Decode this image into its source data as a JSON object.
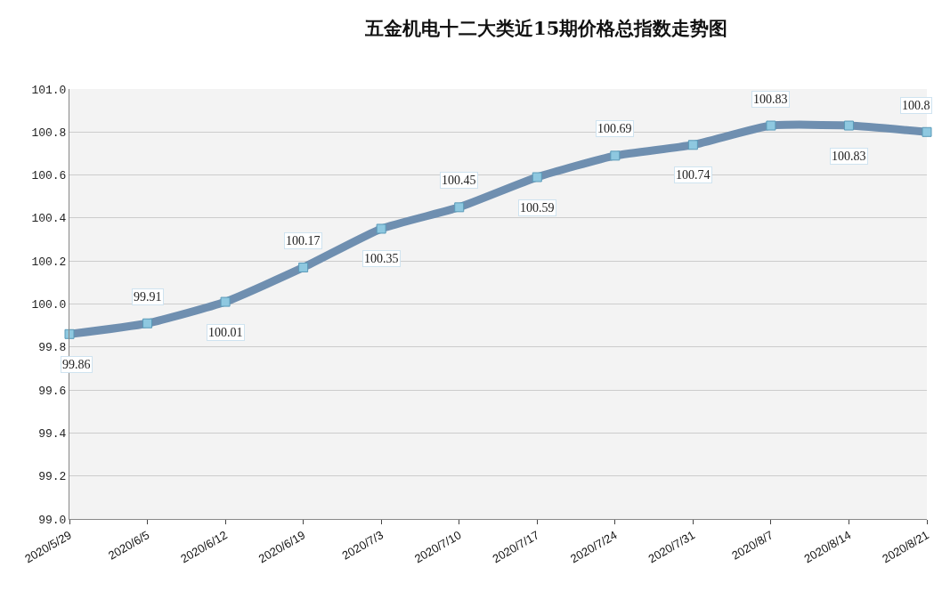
{
  "chart_data": {
    "type": "line",
    "title": "五金机电十二大类近15期价格总指数走势图",
    "categories": [
      "2020/5/29",
      "2020/6/5",
      "2020/6/12",
      "2020/6/19",
      "2020/7/3",
      "2020/7/10",
      "2020/7/17",
      "2020/7/24",
      "2020/7/31",
      "2020/8/7",
      "2020/8/14",
      "2020/8/21"
    ],
    "series": [
      {
        "color": "#6f8fb0",
        "values": [
          99.86,
          99.91,
          100.01,
          100.17,
          100.35,
          100.45,
          100.59,
          100.69,
          100.74,
          100.83,
          100.83,
          100.8
        ]
      }
    ],
    "ylim": [
      99.0,
      101.0
    ],
    "yticks": [
      {
        "value": 99.0,
        "label": "99.0"
      },
      {
        "value": 99.2,
        "label": "99.2"
      },
      {
        "value": 99.4,
        "label": "99.4"
      },
      {
        "value": 99.6,
        "label": "99.6"
      },
      {
        "value": 99.8,
        "label": "99.8"
      },
      {
        "value": 100.0,
        "label": "100.0"
      },
      {
        "value": 100.2,
        "label": "100.2"
      },
      {
        "value": 100.4,
        "label": "100.4"
      },
      {
        "value": 100.6,
        "label": "100.6"
      },
      {
        "value": 100.8,
        "label": "100.8"
      },
      {
        "value": 101.0,
        "label": "101.0"
      }
    ],
    "grid": "y",
    "marker": "square",
    "line_style": "solid",
    "data_labels": true
  }
}
